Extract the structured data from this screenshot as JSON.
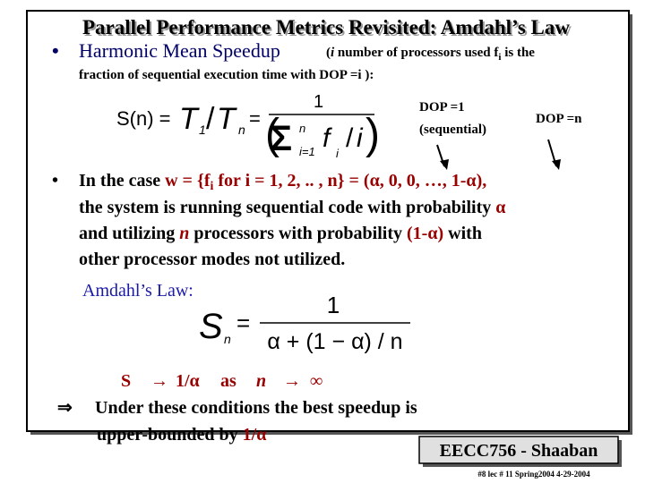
{
  "title": "Parallel Performance Metrics Revisited:  Amdahl’s Law",
  "bullet1": {
    "marker": "•",
    "heading": "Harmonic Mean Speedup",
    "note": [
      "(",
      "i",
      " number  of processors used f",
      "i",
      "  is the"
    ],
    "note_line2": "fraction of sequential execution time with DOP =i ):"
  },
  "dop_labels": {
    "dop1": "DOP =1",
    "sequential": "(sequential)",
    "dopn": "DOP =n"
  },
  "formula1": {
    "lhs": "S(n) =",
    "T1": "T",
    "sub1": "1",
    "slash": "/",
    "Tn": "T",
    "subn": "n",
    "eq": "=",
    "num": "1",
    "sum_top": "n",
    "sigma": "Σ",
    "sum_bottom": "i=1",
    "f": "f",
    "f_sub": "i",
    "slash2": "/",
    "i": "i",
    "paren_open": "(",
    "paren_close": ")"
  },
  "bullet2": {
    "marker": "•",
    "line1": [
      "In the case   ",
      "w = {f",
      "i",
      " for i = 1, 2, .. , n} = (α, 0, 0, …, 1-α),"
    ],
    "line2": [
      "the system is running sequential code with probability ",
      "α"
    ],
    "line3": [
      "and utilizing ",
      "n",
      " processors with probability ",
      "(1-α)",
      " with"
    ],
    "line4": "other processor modes not utilized."
  },
  "amdahl_label": "Amdahl’s Law:",
  "formula2": {
    "S": "S",
    "sub": "n",
    "eq": "=",
    "num": "1",
    "den": "α + (1 − α) / n"
  },
  "limit": [
    "S",
    "→",
    "1/α",
    "as",
    "n",
    "→",
    "∞"
  ],
  "conclusion": {
    "arrow": "⇒",
    "line1": "Under these conditions the best speedup is",
    "line2": "upper-bounded by ",
    "value": "1/α"
  },
  "footer": {
    "badge": "EECC756 - Shaaban",
    "meta": "#8   lec # 11   Spring2004  4-29-2004"
  }
}
